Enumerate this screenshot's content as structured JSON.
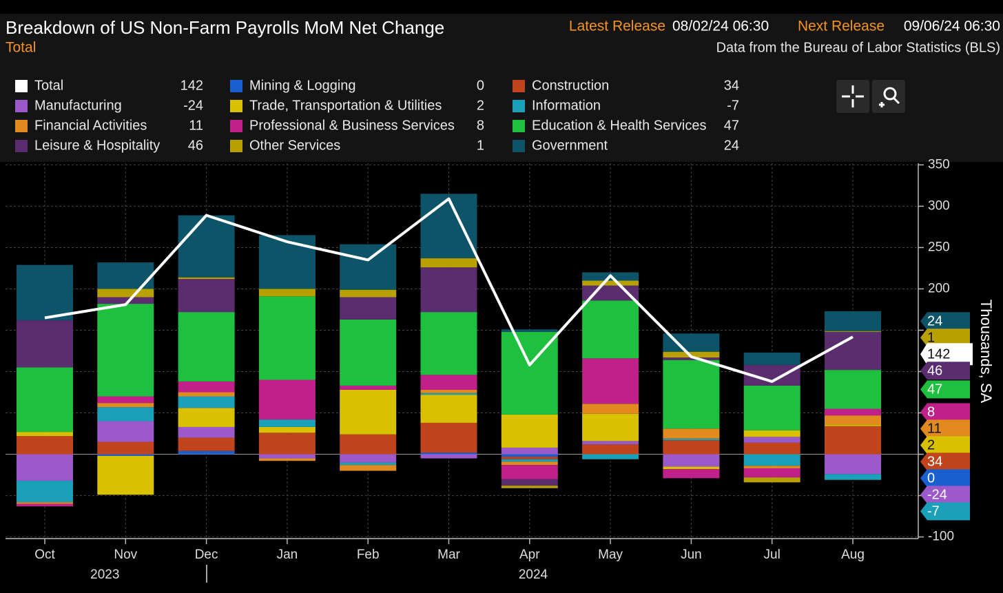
{
  "chart_data": {
    "type": "bar",
    "title": "Breakdown of US Non-Farm Payrolls MoM Net Change",
    "subtitle": "Total",
    "latest_release_label": "Latest Release",
    "latest_release": "08/02/24 06:30",
    "next_release_label": "Next Release",
    "next_release": "09/06/24 06:30",
    "source": "Data from the Bureau of Labor Statistics (BLS)",
    "y_axis_label": "Thousands, SA",
    "categories": [
      "Oct",
      "Nov",
      "Dec",
      "Jan",
      "Feb",
      "Mar",
      "Apr",
      "May",
      "Jun",
      "Jul",
      "Aug"
    ],
    "years": [
      {
        "label": "2023",
        "index": 1
      },
      {
        "label": "2024",
        "index": 6.3
      }
    ],
    "ylim": [
      -102,
      352
    ],
    "yticks": [
      -100,
      -50,
      0,
      50,
      100,
      150,
      200,
      250,
      300,
      350
    ],
    "grid": true,
    "series": [
      {
        "name": "Total",
        "type": "line",
        "color": "#ffffff",
        "values": [
          165,
          181,
          289,
          257,
          235,
          309,
          108,
          216,
          118,
          88,
          142
        ]
      },
      {
        "name": "Mining & Logging",
        "color": "#1a5fd0",
        "values": [
          0,
          -2,
          4,
          0,
          0,
          2,
          -3,
          0,
          0,
          0,
          0
        ]
      },
      {
        "name": "Construction",
        "color": "#c0441c",
        "values": [
          22,
          15,
          16,
          26,
          24,
          36,
          -3,
          12,
          17,
          14,
          34
        ]
      },
      {
        "name": "Manufacturing",
        "color": "#9b59c9",
        "values": [
          -32,
          25,
          13,
          -5,
          -10,
          -5,
          8,
          4,
          -15,
          7,
          -24
        ]
      },
      {
        "name": "Trade, Transportation & Utilities",
        "color": "#d9c000",
        "values": [
          5,
          -47,
          23,
          7,
          54,
          34,
          40,
          33,
          -3,
          8,
          2
        ]
      },
      {
        "name": "Information",
        "color": "#1aa0b8",
        "values": [
          -26,
          17,
          14,
          9,
          -3,
          2,
          -3,
          -6,
          2,
          -14,
          -7
        ]
      },
      {
        "name": "Financial Activities",
        "color": "#e08a20",
        "values": [
          -2,
          5,
          5,
          -3,
          -7,
          4,
          -4,
          12,
          12,
          -3,
          11
        ]
      },
      {
        "name": "Professional & Business Services",
        "color": "#c0208a",
        "values": [
          -3,
          8,
          13,
          48,
          5,
          18,
          -17,
          55,
          -11,
          -11,
          8
        ]
      },
      {
        "name": "Education & Health Services",
        "color": "#1fbf3f",
        "values": [
          78,
          112,
          84,
          101,
          80,
          76,
          100,
          70,
          83,
          54,
          47
        ]
      },
      {
        "name": "Leisure & Hospitality",
        "color": "#5a2d6e",
        "values": [
          57,
          8,
          40,
          0,
          27,
          54,
          -8,
          18,
          3,
          25,
          46
        ]
      },
      {
        "name": "Other Services",
        "color": "#b8a000",
        "values": [
          0,
          10,
          2,
          9,
          9,
          11,
          -3,
          6,
          7,
          -6,
          1
        ]
      },
      {
        "name": "Government",
        "color": "#0e5468",
        "values": [
          67,
          32,
          75,
          65,
          55,
          78,
          3,
          10,
          22,
          15,
          24
        ]
      }
    ]
  }
}
